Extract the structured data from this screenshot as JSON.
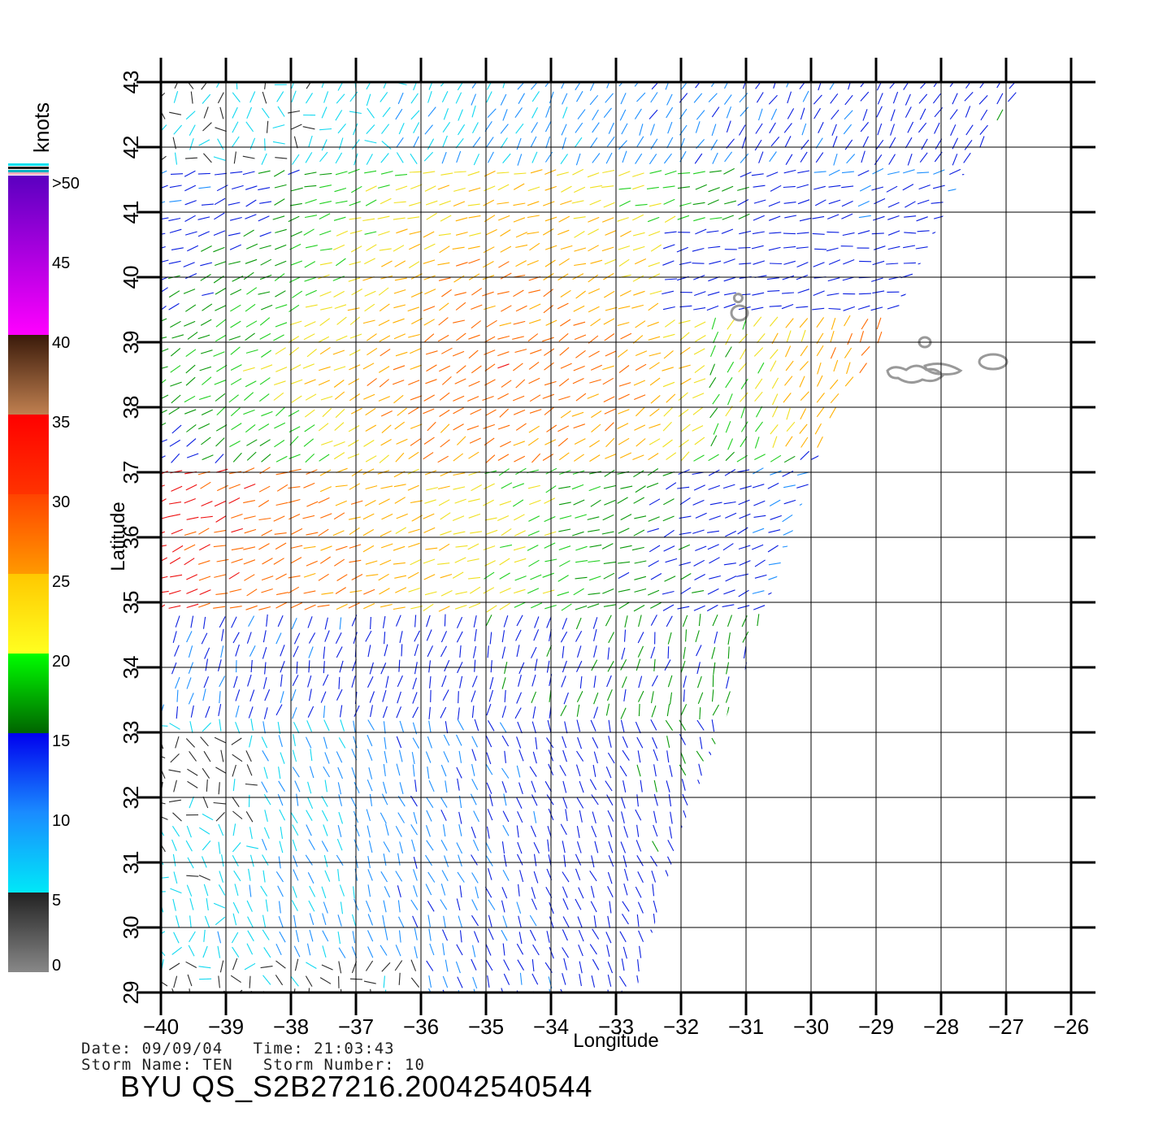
{
  "chart_data": {
    "type": "wind_vector_map",
    "xlabel": "Longitude",
    "ylabel": "Latitude",
    "xlim": [
      -40,
      -26
    ],
    "ylim": [
      29,
      43
    ],
    "x_ticks": [
      -40,
      -39,
      -38,
      -37,
      -36,
      -35,
      -34,
      -33,
      -32,
      -31,
      -30,
      -29,
      -28,
      -27,
      -26
    ],
    "y_ticks": [
      29,
      30,
      31,
      32,
      33,
      34,
      35,
      36,
      37,
      38,
      39,
      40,
      41,
      42,
      43
    ],
    "grid": true,
    "swath_edge_lon_lat": [
      [
        -32.7,
        29
      ],
      [
        -32.0,
        31.5
      ],
      [
        -31.0,
        34
      ],
      [
        -29.8,
        37.5
      ],
      [
        -28.8,
        39.2
      ],
      [
        -27.7,
        41.5
      ],
      [
        -26.7,
        43
      ]
    ],
    "islands": [
      "Azores (outline)"
    ]
  },
  "colorbar": {
    "unit": "knots",
    "labels": [
      "0",
      "5",
      "10",
      "15",
      "20",
      "25",
      "30",
      "35",
      "40",
      "45",
      ">50"
    ],
    "bands": [
      {
        "from": 0,
        "to": 5,
        "colors": [
          "#888888",
          "#222222"
        ]
      },
      {
        "from": 5,
        "to": 10,
        "colors": [
          "#00e8f8",
          "#1a8cff"
        ]
      },
      {
        "from": 10,
        "to": 15,
        "colors": [
          "#1a8cff",
          "#0000ee"
        ]
      },
      {
        "from": 15,
        "to": 20,
        "colors": [
          "#006400",
          "#00ff00"
        ]
      },
      {
        "from": 20,
        "to": 25,
        "colors": [
          "#ffff20",
          "#ffc800"
        ]
      },
      {
        "from": 25,
        "to": 30,
        "colors": [
          "#ff9900",
          "#ff4400"
        ]
      },
      {
        "from": 30,
        "to": 35,
        "colors": [
          "#ff3300",
          "#ff0000"
        ]
      },
      {
        "from": 35,
        "to": 40,
        "colors": [
          "#c08050",
          "#3a1a0a"
        ]
      },
      {
        "from": 40,
        "to": 50,
        "colors": [
          "#ff00ff",
          "#5a00c0"
        ]
      }
    ]
  },
  "footer": {
    "date_line": "Date: 09/09/04   Time: 21:03:43",
    "storm_line": "Storm Name: TEN   Storm Number: 10",
    "file_id": "BYU  QS_S2B27216.20042540544"
  }
}
